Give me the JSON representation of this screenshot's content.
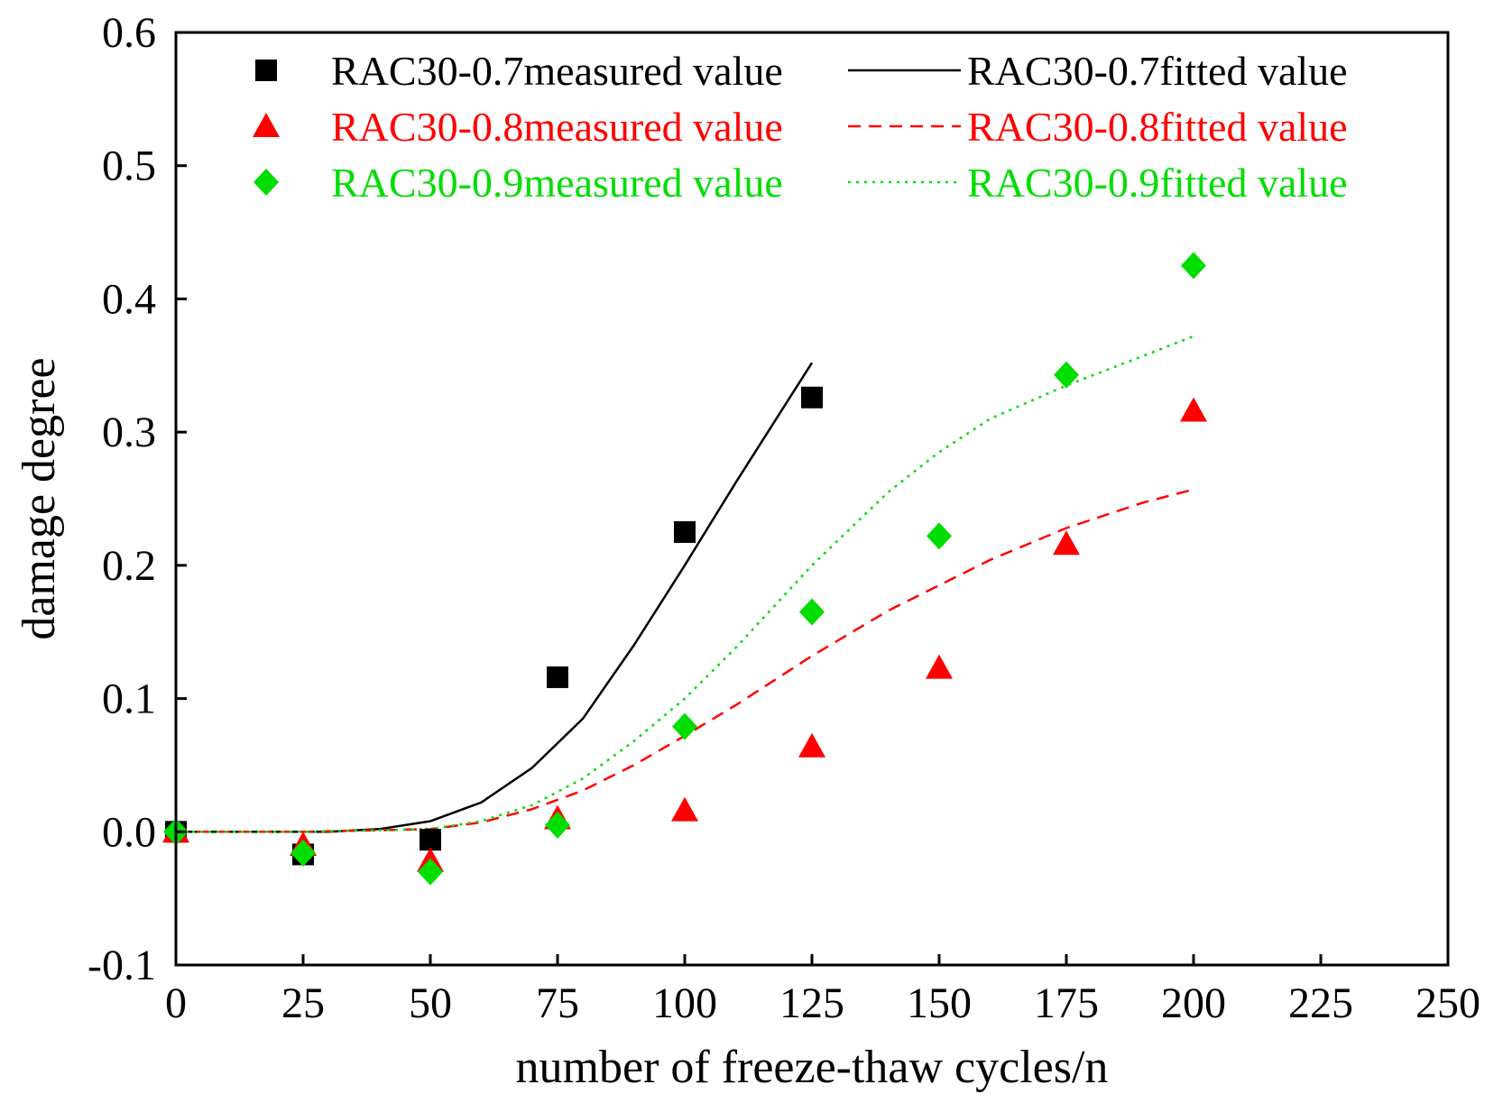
{
  "chart_data": {
    "type": "scatter",
    "title": "",
    "xlabel": "number of freeze-thaw cycles/n",
    "ylabel": "damage degree",
    "xlim": [
      0,
      250
    ],
    "ylim": [
      -0.1,
      0.6
    ],
    "xticks": [
      0,
      25,
      50,
      75,
      100,
      125,
      150,
      175,
      200,
      225,
      250
    ],
    "xtick_labels": [
      "0",
      "25",
      "50",
      "75",
      "100",
      "125",
      "150",
      "175",
      "200",
      "225",
      "250"
    ],
    "yticks": [
      -0.1,
      0.0,
      0.1,
      0.2,
      0.3,
      0.4,
      0.5,
      0.6
    ],
    "ytick_labels": [
      "-0.1",
      "0.0",
      "0.1",
      "0.2",
      "0.3",
      "0.4",
      "0.5",
      "0.6"
    ],
    "grid": false,
    "legend_position": "top-left",
    "series": [
      {
        "name": "RAC30-0.7measured value",
        "kind": "markers",
        "marker": "square",
        "color": "#000000",
        "x": [
          0,
          25,
          50,
          75,
          100,
          125
        ],
        "y": [
          0.0,
          -0.017,
          -0.006,
          0.116,
          0.225,
          0.326
        ]
      },
      {
        "name": "RAC30-0.8measured value",
        "kind": "markers",
        "marker": "triangle",
        "color": "#ff0000",
        "x": [
          0,
          25,
          50,
          75,
          100,
          125,
          150,
          175,
          200
        ],
        "y": [
          0.0,
          -0.01,
          -0.022,
          0.01,
          0.016,
          0.064,
          0.123,
          0.216,
          0.316
        ]
      },
      {
        "name": "RAC30-0.9measured value",
        "kind": "markers",
        "marker": "diamond",
        "color": "#00dd00",
        "x": [
          0,
          25,
          50,
          75,
          100,
          125,
          150,
          175,
          200
        ],
        "y": [
          0.0,
          -0.016,
          -0.03,
          0.005,
          0.079,
          0.165,
          0.222,
          0.343,
          0.425
        ]
      },
      {
        "name": "RAC30-0.7fitted value",
        "kind": "line",
        "dash": "solid",
        "color": "#000000",
        "x": [
          0,
          10,
          20,
          30,
          40,
          50,
          60,
          70,
          80,
          90,
          100,
          110,
          120,
          125
        ],
        "y": [
          0.0,
          0.0,
          0.0,
          0.0,
          0.002,
          0.008,
          0.022,
          0.048,
          0.085,
          0.14,
          0.2,
          0.262,
          0.322,
          0.352
        ]
      },
      {
        "name": "RAC30-0.8fitted value",
        "kind": "line",
        "dash": "dashed",
        "color": "#ff0000",
        "x": [
          0,
          25,
          50,
          60,
          70,
          80,
          90,
          100,
          110,
          125,
          140,
          150,
          160,
          175,
          190,
          200
        ],
        "y": [
          0.0,
          0.0,
          0.002,
          0.007,
          0.017,
          0.031,
          0.05,
          0.072,
          0.095,
          0.132,
          0.166,
          0.185,
          0.204,
          0.228,
          0.247,
          0.257
        ]
      },
      {
        "name": "RAC30-0.9fitted value",
        "kind": "line",
        "dash": "dotted",
        "color": "#00dd00",
        "x": [
          0,
          25,
          50,
          60,
          70,
          80,
          90,
          100,
          110,
          125,
          140,
          150,
          160,
          175,
          190,
          200
        ],
        "y": [
          0.0,
          0.0,
          0.002,
          0.008,
          0.02,
          0.04,
          0.068,
          0.1,
          0.138,
          0.2,
          0.255,
          0.285,
          0.31,
          0.335,
          0.357,
          0.372
        ]
      }
    ],
    "legend": [
      {
        "label": "RAC30-0.7measured value",
        "series": 0
      },
      {
        "label": "RAC30-0.7fitted value",
        "series": 3
      },
      {
        "label": "RAC30-0.8measured value",
        "series": 1
      },
      {
        "label": "RAC30-0.8fitted value",
        "series": 4
      },
      {
        "label": "RAC30-0.9measured value",
        "series": 2
      },
      {
        "label": "RAC30-0.9fitted value",
        "series": 5
      }
    ]
  }
}
